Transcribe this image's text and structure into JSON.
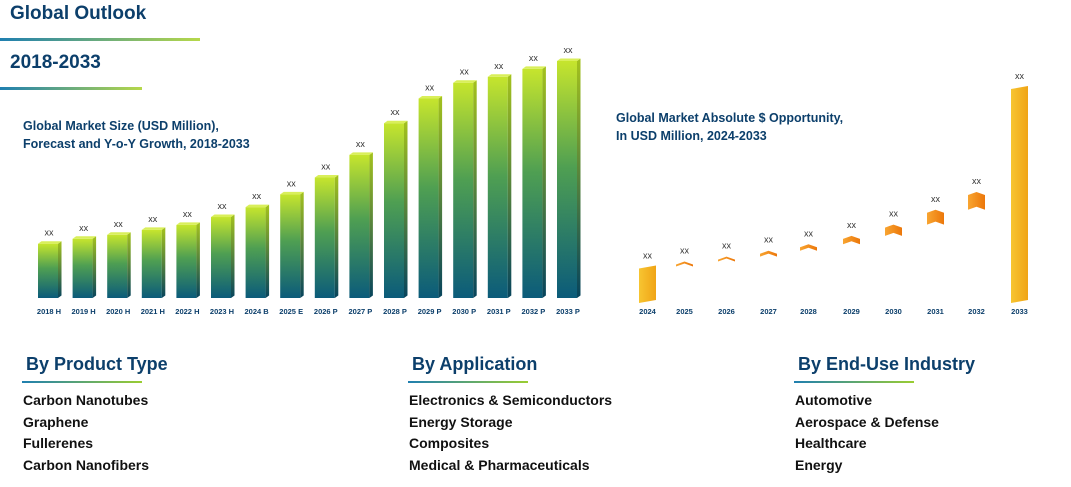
{
  "header": {
    "title": "Global Outlook",
    "period": "2018-2033"
  },
  "chart_data": [
    {
      "type": "bar",
      "title": "Global Market Size (USD Million),\nForecast and Y-o-Y Growth, 2018-2033",
      "categories": [
        "2018 H",
        "2019 H",
        "2020 H",
        "2021 H",
        "2022 H",
        "2023 H",
        "2024 B",
        "2025 E",
        "2026 P",
        "2027 P",
        "2028 P",
        "2029 P",
        "2030 P",
        "2031 P",
        "2032 P",
        "2033 P"
      ],
      "values": [
        55,
        60,
        64,
        69,
        74,
        82,
        92,
        105,
        122,
        145,
        177,
        202,
        218,
        224,
        232,
        240
      ],
      "data_labels": [
        "xx",
        "xx",
        "xx",
        "xx",
        "xx",
        "xx",
        "xx",
        "xx",
        "xx",
        "xx",
        "xx",
        "xx",
        "xx",
        "xx",
        "xx",
        "xx"
      ],
      "colors": [
        "#c6e52d",
        "#0b5b7a"
      ]
    },
    {
      "type": "waterfall",
      "title": "Global Market Absolute $ Opportunity,\nIn USD Million, 2024-2033",
      "categories": [
        "2024",
        "2025",
        "2026",
        "2027",
        "2028",
        "2029",
        "2030",
        "2031",
        "2032",
        "2033"
      ],
      "values": [
        70,
        10,
        10,
        12,
        13,
        17,
        23,
        30,
        36,
        213
      ],
      "data_labels": [
        "xx",
        "xx",
        "xx",
        "xx",
        "xx",
        "xx",
        "xx",
        "xx",
        "xx",
        "xx"
      ],
      "colors": {
        "total": "#f5b521",
        "step": "#f58a0f"
      }
    }
  ],
  "segments": [
    {
      "title": "By Product Type",
      "items": [
        "Carbon Nanotubes",
        "Graphene",
        "Fullerenes",
        "Carbon Nanofibers"
      ]
    },
    {
      "title": "By Application",
      "items": [
        "Electronics & Semiconductors",
        "Energy Storage",
        "Composites",
        "Medical & Pharmaceuticals"
      ]
    },
    {
      "title": "By End-Use Industry",
      "items": [
        "Automotive",
        "Aerospace & Defense",
        "Healthcare",
        "Energy"
      ]
    }
  ]
}
